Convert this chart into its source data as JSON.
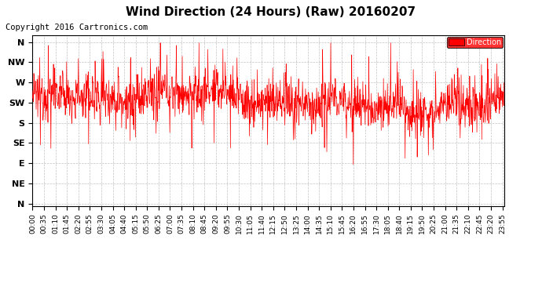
{
  "title": "Wind Direction (24 Hours) (Raw) 20160207",
  "copyright": "Copyright 2016 Cartronics.com",
  "background_color": "#ffffff",
  "plot_bg_color": "#ffffff",
  "line_color": "#ff0000",
  "grid_color": "#999999",
  "ytick_labels": [
    "N",
    "NW",
    "W",
    "SW",
    "S",
    "SE",
    "E",
    "NE",
    "N"
  ],
  "ytick_values": [
    360,
    315,
    270,
    225,
    180,
    135,
    90,
    45,
    0
  ],
  "ylim": [
    -5,
    375
  ],
  "legend_label": "Direction",
  "legend_bg": "#ff0000",
  "legend_text_color": "#ffffff",
  "seed": 12345,
  "n_points": 1440,
  "base_direction": 230,
  "noise_std": 25,
  "title_fontsize": 11,
  "copyright_fontsize": 7.5,
  "tick_fontsize": 6.5,
  "ytick_fontsize": 8,
  "xtick_interval_minutes": 35,
  "total_minutes": 1440
}
